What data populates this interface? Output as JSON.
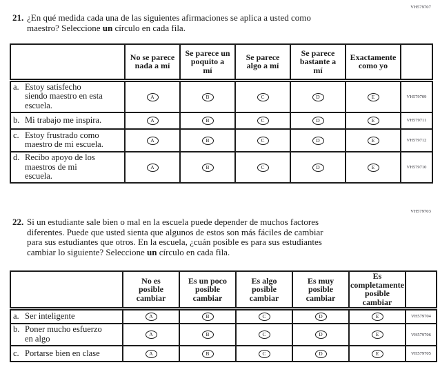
{
  "options": {
    "letters": [
      "A",
      "B",
      "C",
      "D",
      "E"
    ]
  },
  "q21": {
    "number": "21.",
    "code": "VH579707",
    "prompt_before": "¿En qué medida cada una de las siguientes afirmaciones se aplica a usted como\nmaestro? Seleccione ",
    "prompt_bold": "un",
    "prompt_after": " círculo en cada fila.",
    "columns": [
      "No se parece\nnada a mí",
      "Se parece un\npoquito a\nmí",
      "Se parece\nalgo a mí",
      "Se parece\nbastante a\nmí",
      "Exactamente\ncomo yo"
    ],
    "rows": [
      {
        "letter": "a.",
        "text": "Estoy satisfecho\nsiendo maestro en esta\nescuela.",
        "code": "VH579709"
      },
      {
        "letter": "b.",
        "text": "Mi trabajo me inspira.",
        "code": "VH579711"
      },
      {
        "letter": "c.",
        "text": "Estoy frustrado como\nmaestro de mi escuela.",
        "code": "VH579712"
      },
      {
        "letter": "d.",
        "text": "Recibo apoyo de los\nmaestros de mi\nescuela.",
        "code": "VH579710"
      }
    ]
  },
  "q22": {
    "number": "22.",
    "code": "VH579703",
    "prompt_before": "Si un estudiante sale bien o mal en la escuela puede depender de muchos factores\ndiferentes. Puede que usted sienta que algunos de estos son más fáciles de cambiar\npara sus estudiantes que otros. En la escuela, ¿cuán posible es para sus estudiantes\ncambiar lo siguiente? Seleccione ",
    "prompt_bold": "un",
    "prompt_after": " círculo en cada fila.",
    "columns": [
      "No es\nposible\ncambiar",
      "Es un poco\nposible\ncambiar",
      "Es algo\nposible\ncambiar",
      "Es muy\nposible\ncambiar",
      "Es\ncompletamente\nposible\ncambiar"
    ],
    "rows": [
      {
        "letter": "a.",
        "text": "Ser inteligente",
        "code": "VH579704"
      },
      {
        "letter": "b.",
        "text": "Poner mucho esfuerzo\nen algo",
        "code": "VH579706"
      },
      {
        "letter": "c.",
        "text": "Portarse bien en clase",
        "code": "VH579705"
      }
    ]
  }
}
